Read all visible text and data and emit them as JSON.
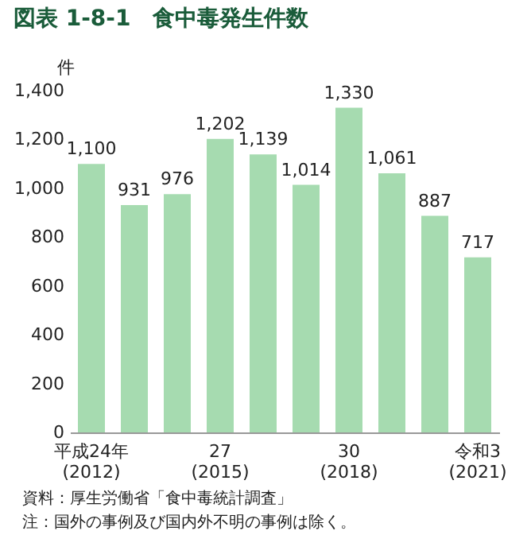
{
  "chart_data": {
    "type": "bar",
    "title": "図表 1-8-1　食中毒発生件数",
    "ylabel": "件",
    "categories": [
      "平成24年\n(2012)",
      null,
      null,
      "27\n(2015)",
      null,
      null,
      "30\n(2018)",
      null,
      null,
      "令和3\n(2021)"
    ],
    "values": [
      1100,
      931,
      976,
      1202,
      1139,
      1014,
      1330,
      1061,
      887,
      717
    ],
    "value_labels": [
      "1,100",
      "931",
      "976",
      "1,202",
      "1,139",
      "1,014",
      "1,330",
      "1,061",
      "887",
      "717"
    ],
    "color": "#a6dbb0",
    "ylim": [
      0,
      1400
    ],
    "yticks": [
      0,
      200,
      400,
      600,
      800,
      {
        "value": 1000,
        "label": "1,000"
      },
      {
        "value": 1200,
        "label": "1,200"
      },
      {
        "value": 1400,
        "label": "1,400"
      }
    ],
    "grid": false,
    "annotations": [
      "資料：厚生労働省「食中毒統計調査」",
      "　注：国外の事例及び国内外不明の事例は除く。"
    ]
  }
}
